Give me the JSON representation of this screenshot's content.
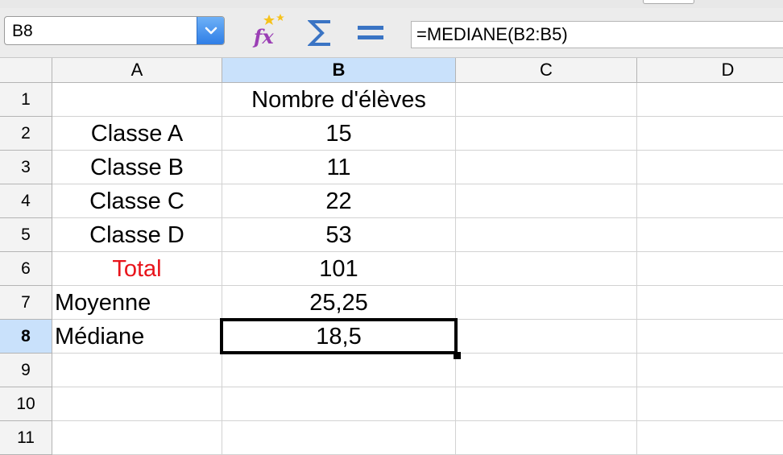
{
  "formula_bar": {
    "name_box": "B8",
    "formula": "=MEDIANE(B2:B5)",
    "icons": [
      "function-wizard-icon",
      "sum-icon",
      "equals-icon"
    ]
  },
  "sheet": {
    "columns": [
      "A",
      "B",
      "C",
      "D"
    ],
    "selected_column": "B",
    "rows": [
      "1",
      "2",
      "3",
      "4",
      "5",
      "6",
      "7",
      "8",
      "9",
      "10",
      "11"
    ],
    "selected_row": "8",
    "cells": {
      "B1": "Nombre d'élèves",
      "A2": "Classe A",
      "B2": "15",
      "A3": "Classe B",
      "B3": "11",
      "A4": "Classe C",
      "B4": "22",
      "A5": "Classe D",
      "B5": "53",
      "A6": "Total",
      "B6": "101",
      "A7": "Moyenne",
      "B7": "25,25",
      "A8": "Médiane",
      "B8": "18,5"
    },
    "colors": {
      "total_label": "#e8141b",
      "selection_highlight": "#c9e1fb",
      "dropdown_button": "#2f7ee6"
    }
  }
}
